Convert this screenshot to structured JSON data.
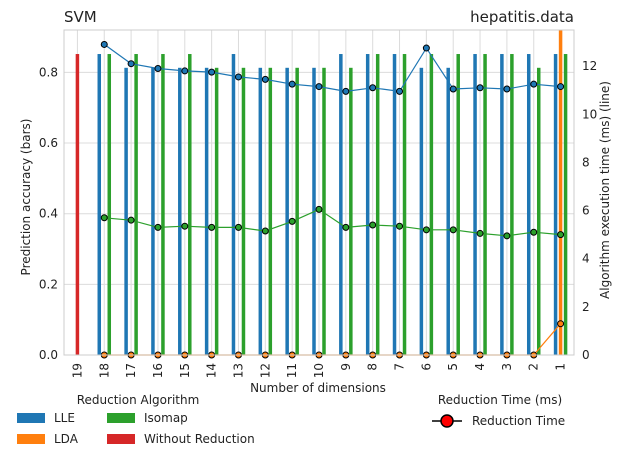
{
  "chart_data": {
    "type": "bar",
    "title_left": "SVM",
    "title_right": "hepatitis.data",
    "xlabel": "Number of dimensions",
    "ylabel_left": "Prediction accuracy (bars)",
    "ylabel_right": "Algorithm execution time (ms) (line)",
    "categories": [
      "19",
      "18",
      "17",
      "16",
      "15",
      "14",
      "13",
      "12",
      "11",
      "10",
      "9",
      "8",
      "7",
      "6",
      "5",
      "4",
      "3",
      "2",
      "1"
    ],
    "ylim_left": [
      0,
      0.92
    ],
    "yticks_left": [
      "0.0",
      "0.2",
      "0.4",
      "0.6",
      "0.8"
    ],
    "ylim_right": [
      0,
      13.5
    ],
    "yticks_right": [
      "0",
      "2",
      "4",
      "6",
      "8",
      "10",
      "12"
    ],
    "grid": true,
    "series": [
      {
        "name": "LLE",
        "color": "#1f77b4",
        "values": [
          null,
          0.852,
          0.813,
          0.813,
          0.813,
          0.813,
          0.852,
          0.813,
          0.813,
          0.813,
          0.852,
          0.852,
          0.852,
          0.813,
          0.813,
          0.852,
          0.852,
          0.852,
          0.852
        ]
      },
      {
        "name": "LDA",
        "color": "#ff7f0e",
        "values": [
          null,
          null,
          null,
          null,
          null,
          null,
          null,
          null,
          null,
          null,
          null,
          null,
          null,
          null,
          null,
          null,
          null,
          null,
          0.92
        ]
      },
      {
        "name": "Isomap",
        "color": "#2ca02c",
        "values": [
          null,
          0.852,
          0.852,
          0.852,
          0.852,
          0.813,
          0.813,
          0.813,
          0.813,
          0.813,
          0.813,
          0.852,
          0.852,
          0.852,
          0.852,
          0.852,
          0.852,
          0.813,
          0.852
        ]
      },
      {
        "name": "Without Reduction",
        "color": "#d62728",
        "values": [
          0.852,
          null,
          null,
          null,
          null,
          null,
          null,
          null,
          null,
          null,
          null,
          null,
          null,
          null,
          null,
          null,
          null,
          null,
          null
        ]
      }
    ],
    "lines": [
      {
        "name": "LLE",
        "color": "#1f77b4",
        "values": [
          null,
          12.9,
          12.1,
          11.9,
          11.8,
          11.75,
          11.55,
          11.45,
          11.25,
          11.15,
          10.95,
          11.1,
          10.95,
          12.75,
          11.05,
          11.1,
          11.05,
          11.25,
          11.15
        ]
      },
      {
        "name": "Isomap",
        "color": "#2ca02c",
        "values": [
          null,
          5.7,
          5.6,
          5.3,
          5.35,
          5.3,
          5.3,
          5.15,
          5.55,
          6.05,
          5.3,
          5.4,
          5.35,
          5.2,
          5.2,
          5.05,
          4.95,
          5.1,
          5.0
        ]
      },
      {
        "name": "LDA",
        "color": "#ff7f0e",
        "values": [
          null,
          0,
          0,
          0,
          0,
          0,
          0,
          0,
          0,
          0,
          0,
          0,
          0,
          0,
          0,
          0,
          0,
          0,
          1.3
        ]
      }
    ],
    "legend": {
      "title": "Reduction Algorithm",
      "items": [
        {
          "label": "LLE",
          "color": "#1f77b4"
        },
        {
          "label": "Isomap",
          "color": "#2ca02c"
        },
        {
          "label": "LDA",
          "color": "#ff7f0e"
        },
        {
          "label": "Without Reduction",
          "color": "#d62728"
        }
      ]
    },
    "legend2": {
      "title": "Reduction Time (ms)",
      "label": "Reduction Time",
      "marker_color": "#ff0000"
    }
  }
}
